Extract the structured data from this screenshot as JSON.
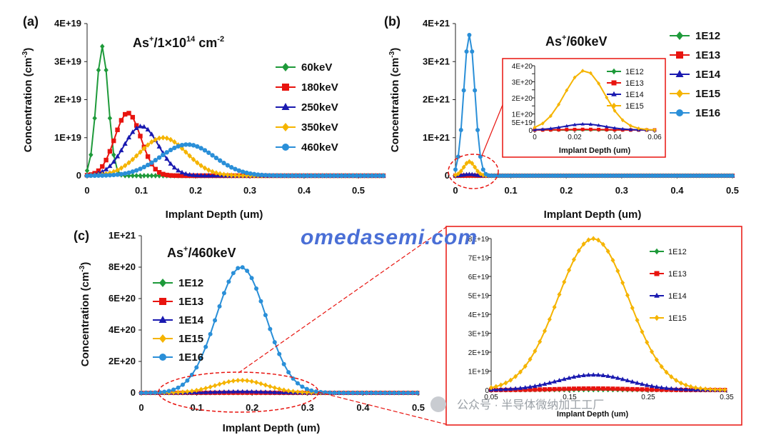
{
  "panel_labels": [
    "(a)",
    "(b)",
    "(c)"
  ],
  "watermark": {
    "text": "omedasemi.com",
    "cn": "公众号 · 半导体微纳加工工厂"
  },
  "chart_data": [
    {
      "id": "a",
      "type": "line",
      "title_parts": [
        "As",
        "+",
        "/1×10",
        "14",
        " cm",
        "-2"
      ],
      "xlabel": "Implant Depth (um)",
      "ylabel": "Concentration (cm-3)",
      "xlim": [
        0,
        0.55
      ],
      "ylim": [
        0,
        4e+19
      ],
      "xticks": [
        0,
        0.1,
        0.2,
        0.3,
        0.4,
        0.5
      ],
      "xticklabels": [
        "0",
        "0.1",
        "0.2",
        "0.3",
        "0.4",
        "0.5"
      ],
      "yticks": [
        0,
        1e+19,
        2e+19,
        3e+19,
        4e+19
      ],
      "yticklabels": [
        "0",
        "1E+19",
        "2E+19",
        "3E+19",
        "4E+19"
      ],
      "legend_position": "right",
      "series": [
        {
          "name": "60keV",
          "color": "#1e9a3a",
          "marker": "diamond",
          "peak": 0.028,
          "height": 3.4e+19,
          "sigma": 0.011
        },
        {
          "name": "180keV",
          "color": "#e8140f",
          "marker": "square",
          "peak": 0.075,
          "height": 1.65e+19,
          "sigma": 0.024
        },
        {
          "name": "250keV",
          "color": "#1a1ab0",
          "marker": "triangle",
          "peak": 0.1,
          "height": 1.3e+19,
          "sigma": 0.032
        },
        {
          "name": "350keV",
          "color": "#f5b400",
          "marker": "diamond",
          "peak": 0.14,
          "height": 1e+19,
          "sigma": 0.043
        },
        {
          "name": "460keV",
          "color": "#2a8fd8",
          "marker": "circle",
          "peak": 0.185,
          "height": 8.2e+18,
          "sigma": 0.05
        }
      ]
    },
    {
      "id": "b",
      "type": "line",
      "title_parts": [
        "As",
        "+",
        "/60keV"
      ],
      "xlabel": "Implant Depth (um)",
      "ylabel": "Concentration (cm-3)",
      "xlim": [
        0,
        0.5
      ],
      "ylim": [
        0,
        4e+21
      ],
      "xticks": [
        0,
        0.1,
        0.2,
        0.3,
        0.4,
        0.5
      ],
      "xticklabels": [
        "0",
        "0.1",
        "0.2",
        "0.3",
        "0.4",
        "0.5"
      ],
      "yticks": [
        0,
        1e+21,
        2e+21,
        3e+21,
        4e+21
      ],
      "yticklabels": [
        "0",
        "1E+21",
        "2E+21",
        "3E+21",
        "4E+21"
      ],
      "legend_position": "right",
      "series": [
        {
          "name": "1E12",
          "color": "#1e9a3a",
          "marker": "diamond",
          "peak": 0.025,
          "height": 3.7e+17,
          "sigma": 0.01
        },
        {
          "name": "1E13",
          "color": "#e8140f",
          "marker": "square",
          "peak": 0.025,
          "height": 3.7e+18,
          "sigma": 0.01
        },
        {
          "name": "1E14",
          "color": "#1a1ab0",
          "marker": "triangle",
          "peak": 0.025,
          "height": 3.7e+19,
          "sigma": 0.01
        },
        {
          "name": "1E15",
          "color": "#f5b400",
          "marker": "diamond",
          "peak": 0.025,
          "height": 3.7e+20,
          "sigma": 0.01
        },
        {
          "name": "1E16",
          "color": "#2a8fd8",
          "marker": "circle",
          "peak": 0.025,
          "height": 3.7e+21,
          "sigma": 0.01
        }
      ],
      "inset": {
        "xlim": [
          0,
          0.06
        ],
        "ylim": [
          0,
          4e+20
        ],
        "xticks": [
          0,
          0.02,
          0.04,
          0.06
        ],
        "xticklabels": [
          "0",
          "0.02",
          "0.04",
          "0.06"
        ],
        "yticks": [
          0,
          5e+19,
          1e+20,
          1.5e+20,
          2e+20,
          2.5e+20,
          3e+20,
          3.5e+20,
          4e+20
        ],
        "yticklabels": [
          "0",
          "5E+19",
          "1E+20",
          "",
          "2E+20",
          "",
          "3E+20",
          "",
          "4E+20"
        ],
        "xlabel": "Implant Depth (um)",
        "series_names": [
          "1E12",
          "1E13",
          "1E14",
          "1E15"
        ]
      }
    },
    {
      "id": "c",
      "type": "line",
      "title_parts": [
        "As",
        "+",
        "/460keV"
      ],
      "xlabel": "Implant Depth (um)",
      "ylabel": "Concentration (cm-3)",
      "xlim": [
        0,
        0.5
      ],
      "ylim": [
        0,
        1e+21
      ],
      "xticks": [
        0,
        0.1,
        0.2,
        0.3,
        0.4,
        0.5
      ],
      "xticklabels": [
        "0",
        "0.1",
        "0.2",
        "0.3",
        "0.4",
        "0.5"
      ],
      "yticks": [
        0,
        2e+20,
        4e+20,
        6e+20,
        8e+20,
        1e+21
      ],
      "yticklabels": [
        "0",
        "2E+20",
        "4E+20",
        "6E+20",
        "8E+20",
        "1E+21"
      ],
      "legend_position": "left",
      "series": [
        {
          "name": "1E12",
          "color": "#1e9a3a",
          "marker": "diamond",
          "peak": 0.18,
          "height": 8e+16,
          "sigma": 0.045
        },
        {
          "name": "1E13",
          "color": "#e8140f",
          "marker": "square",
          "peak": 0.18,
          "height": 8e+17,
          "sigma": 0.045
        },
        {
          "name": "1E14",
          "color": "#1a1ab0",
          "marker": "triangle",
          "peak": 0.18,
          "height": 8e+18,
          "sigma": 0.045
        },
        {
          "name": "1E15",
          "color": "#f5b400",
          "marker": "diamond",
          "peak": 0.18,
          "height": 8e+19,
          "sigma": 0.045
        },
        {
          "name": "1E16",
          "color": "#2a8fd8",
          "marker": "circle",
          "peak": 0.18,
          "height": 8e+20,
          "sigma": 0.045
        }
      ],
      "inset": {
        "xlim": [
          0.05,
          0.35
        ],
        "ylim": [
          0,
          8e+19
        ],
        "xticks": [
          0.05,
          0.15,
          0.25,
          0.35
        ],
        "xticklabels": [
          "0.05",
          "0.15",
          "0.25",
          "0.35"
        ],
        "yticks": [
          0,
          1e+19,
          2e+19,
          3e+19,
          4e+19,
          5e+19,
          6e+19,
          7e+19,
          8e+19
        ],
        "yticklabels": [
          "0",
          "1E+19",
          "2E+19",
          "3E+19",
          "4E+19",
          "5E+19",
          "6E+19",
          "7E+19",
          "8E+19"
        ],
        "xlabel": "Implant Depth (um)",
        "series_names": [
          "1E12",
          "1E13",
          "1E14",
          "1E15"
        ]
      }
    }
  ]
}
